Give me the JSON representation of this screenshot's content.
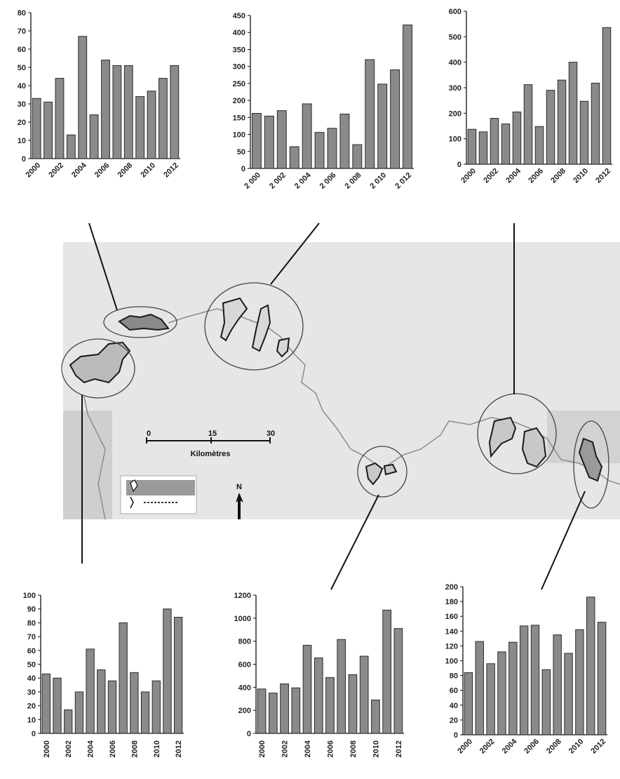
{
  "map": {
    "scale_ticks": [
      "0",
      "15",
      "30"
    ],
    "scale_unit": "Kilomètres",
    "north_label": "N"
  },
  "colors": {
    "bar_fill": "#8a8a8a",
    "bar_stroke": "#2a2a2a",
    "map_background": "#e6e6e6",
    "river": "#8c8c8c",
    "boundary": "#3a3a3a"
  },
  "chart_data": [
    {
      "type": "bar",
      "position": "top-left",
      "categories": [
        "2000",
        "2001",
        "2002",
        "2003",
        "2004",
        "2005",
        "2006",
        "2007",
        "2008",
        "2009",
        "2010",
        "2011",
        "2012"
      ],
      "tick_labels": [
        "2000",
        "2002",
        "2004",
        "2006",
        "2008",
        "2010",
        "2012"
      ],
      "values": [
        33,
        31,
        44,
        13,
        67,
        24,
        54,
        51,
        51,
        34,
        37,
        44,
        51
      ],
      "ylim": [
        0,
        80
      ],
      "yticks": [
        "0",
        "10",
        "20",
        "30",
        "40",
        "50",
        "60",
        "70",
        "80"
      ],
      "grid": false
    },
    {
      "type": "bar",
      "position": "top-center",
      "categories": [
        "2000",
        "2001",
        "2002",
        "2003",
        "2004",
        "2005",
        "2006",
        "2007",
        "2008",
        "2009",
        "2010",
        "2011",
        "2012"
      ],
      "tick_labels": [
        "2 000",
        "2 002",
        "2 004",
        "2 006",
        "2 008",
        "2 010",
        "2 012"
      ],
      "values": [
        162,
        154,
        170,
        64,
        190,
        106,
        118,
        160,
        70,
        320,
        248,
        290,
        422
      ],
      "ylim": [
        0,
        450
      ],
      "yticks": [
        "0",
        "50",
        "100",
        "150",
        "200",
        "250",
        "300",
        "350",
        "400",
        "450"
      ],
      "grid": false
    },
    {
      "type": "bar",
      "position": "top-right",
      "categories": [
        "2000",
        "2001",
        "2002",
        "2003",
        "2004",
        "2005",
        "2006",
        "2007",
        "2008",
        "2009",
        "2010",
        "2011",
        "2012"
      ],
      "tick_labels": [
        "2000",
        "2002",
        "2004",
        "2006",
        "2008",
        "2010",
        "2012"
      ],
      "values": [
        137,
        127,
        180,
        158,
        205,
        312,
        148,
        290,
        330,
        400,
        247,
        318,
        536
      ],
      "ylim": [
        0,
        600
      ],
      "yticks": [
        "0",
        "100",
        "200",
        "300",
        "400",
        "500",
        "600"
      ],
      "grid": false
    },
    {
      "type": "bar",
      "position": "bottom-left",
      "categories": [
        "2000",
        "2001",
        "2002",
        "2003",
        "2004",
        "2005",
        "2006",
        "2007",
        "2008",
        "2009",
        "2010",
        "2011",
        "2012"
      ],
      "tick_labels": [
        "2000",
        "2002",
        "2004",
        "2006",
        "2008",
        "2010",
        "2012"
      ],
      "values": [
        43,
        40,
        17,
        30,
        61,
        46,
        38,
        80,
        44,
        30,
        38,
        90,
        84
      ],
      "ylim": [
        0,
        100
      ],
      "yticks": [
        "0",
        "10",
        "20",
        "30",
        "40",
        "50",
        "60",
        "70",
        "80",
        "90",
        "100"
      ],
      "grid": false
    },
    {
      "type": "bar",
      "position": "bottom-center",
      "categories": [
        "2000",
        "2001",
        "2002",
        "2003",
        "2004",
        "2005",
        "2006",
        "2007",
        "2008",
        "2009",
        "2010",
        "2011",
        "2012"
      ],
      "tick_labels": [
        "2000",
        "2002",
        "2004",
        "2006",
        "2008",
        "2010",
        "2012"
      ],
      "values": [
        385,
        350,
        430,
        395,
        765,
        655,
        485,
        815,
        510,
        670,
        290,
        1070,
        910
      ],
      "ylim": [
        0,
        1200
      ],
      "yticks": [
        "0",
        "200",
        "400",
        "600",
        "800",
        "1000",
        "1200"
      ],
      "grid": false
    },
    {
      "type": "bar",
      "position": "bottom-right",
      "categories": [
        "2000",
        "2001",
        "2002",
        "2003",
        "2004",
        "2005",
        "2006",
        "2007",
        "2008",
        "2009",
        "2010",
        "2011",
        "2012"
      ],
      "tick_labels": [
        "2000",
        "2002",
        "2004",
        "2006",
        "2008",
        "2010",
        "2012"
      ],
      "values": [
        84,
        126,
        96,
        112,
        125,
        147,
        148,
        88,
        135,
        110,
        142,
        186,
        152
      ],
      "ylim": [
        0,
        200
      ],
      "yticks": [
        "0",
        "20",
        "40",
        "60",
        "80",
        "100",
        "120",
        "140",
        "160",
        "180",
        "200"
      ],
      "grid": false
    }
  ]
}
